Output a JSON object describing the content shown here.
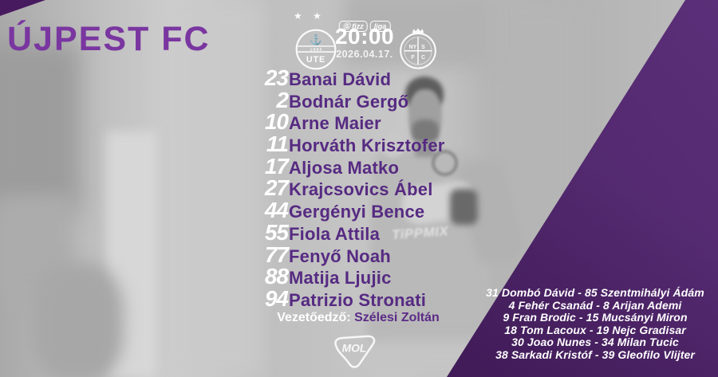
{
  "title": "ÚJPEST FC",
  "match": {
    "stars": "★ ★",
    "time": "20:00",
    "date": "2026.04.17.",
    "league_pill": {
      "fizz": "Ⓖ fizz",
      "liga": "liga"
    },
    "home_badge": {
      "anchor": "⚓",
      "band": "1·8·8·5",
      "letters": "UTE"
    },
    "away_badge": {
      "tl": "NY",
      "tr": "S",
      "bl": "F",
      "br": "C"
    }
  },
  "lineup": {
    "players": [
      {
        "number": "23",
        "name": "Banai Dávid"
      },
      {
        "number": "2",
        "name": "Bodnár Gergő"
      },
      {
        "number": "10",
        "name": "Arne Maier"
      },
      {
        "number": "11",
        "name": "Horváth Krisztofer"
      },
      {
        "number": "17",
        "name": "Aljosa Matko"
      },
      {
        "number": "27",
        "name": "Krajcsovics Ábel"
      },
      {
        "number": "44",
        "name": "Gergényi Bence"
      },
      {
        "number": "55",
        "name": "Fiola Attila"
      },
      {
        "number": "77",
        "name": "Fenyő Noah"
      },
      {
        "number": "88",
        "name": "Matija Ljujic"
      },
      {
        "number": "94",
        "name": "Patrizio Stronati"
      }
    ],
    "coach_label": "Vezetőedző:",
    "coach_name": "Szélesi Zoltán"
  },
  "substitutes": [
    "31 Dombó Dávid - 85 Szentmihályi Ádám",
    "4 Fehér Csanád - 8 Arijan Ademi",
    "9 Fran Brodic - 15 Mucsányi Miron",
    "18 Tom Lacoux - 19 Nejc Gradisar",
    "30 Joao Nunes - 34 Milan Tucic",
    "38 Sarkadi Kristóf - 39 Gleofilo Vlijter"
  ],
  "photo": {
    "jersey_text": "TiPPMIX"
  },
  "sponsor": {
    "name": "MOL"
  },
  "colors": {
    "title_purple": "#7a36a0",
    "name_purple": "#562a82",
    "wedge_dark": "#3b1254",
    "wedge_light": "#522472",
    "white": "#ffffff"
  }
}
